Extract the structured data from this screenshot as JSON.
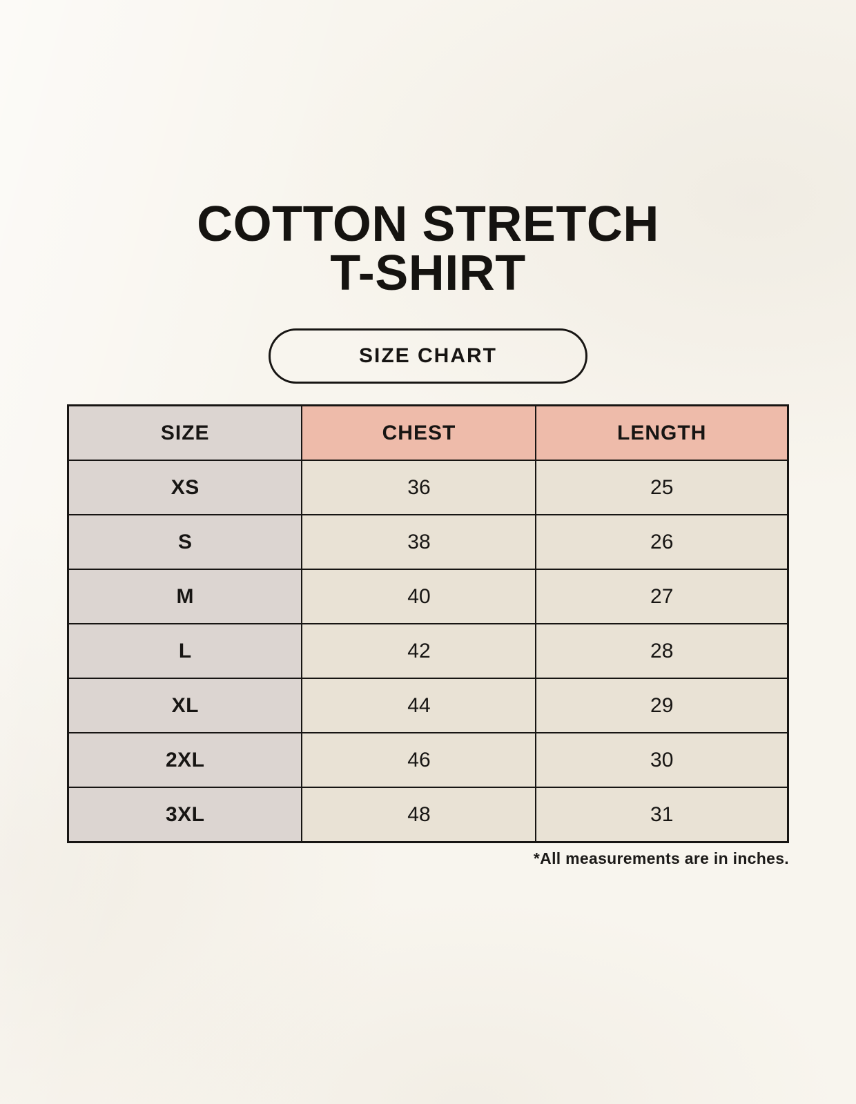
{
  "colors": {
    "background": "#f8f5ee",
    "header_pink": "#eebbaa",
    "header_gray": "#dcd5d1",
    "cell_cream": "#e9e2d5",
    "border": "#171513",
    "text": "#171513"
  },
  "page": {
    "title_line1": "COTTON STRETCH",
    "title_line2": "T-SHIRT",
    "badge": "SIZE CHART",
    "footnote": "*All measurements are in inches."
  },
  "chart_data": {
    "type": "table",
    "title": "COTTON STRETCH T-SHIRT",
    "subtitle": "SIZE CHART",
    "columns": [
      "SIZE",
      "CHEST",
      "LENGTH"
    ],
    "rows": [
      [
        "XS",
        "36",
        "25"
      ],
      [
        "S",
        "38",
        "26"
      ],
      [
        "M",
        "40",
        "27"
      ],
      [
        "L",
        "42",
        "28"
      ],
      [
        "XL",
        "44",
        "29"
      ],
      [
        "2XL",
        "46",
        "30"
      ],
      [
        "3XL",
        "48",
        "31"
      ]
    ],
    "footnote": "*All measurements are in inches.",
    "layout": {
      "legend_position": "none",
      "grid": "all-borders",
      "header_fill": {
        "size_column": "#dcd5d1",
        "measurement_columns": "#eebbaa"
      },
      "body_fill": {
        "size_column": "#dcd5d1",
        "value_cells": "#e9e2d5"
      }
    }
  }
}
